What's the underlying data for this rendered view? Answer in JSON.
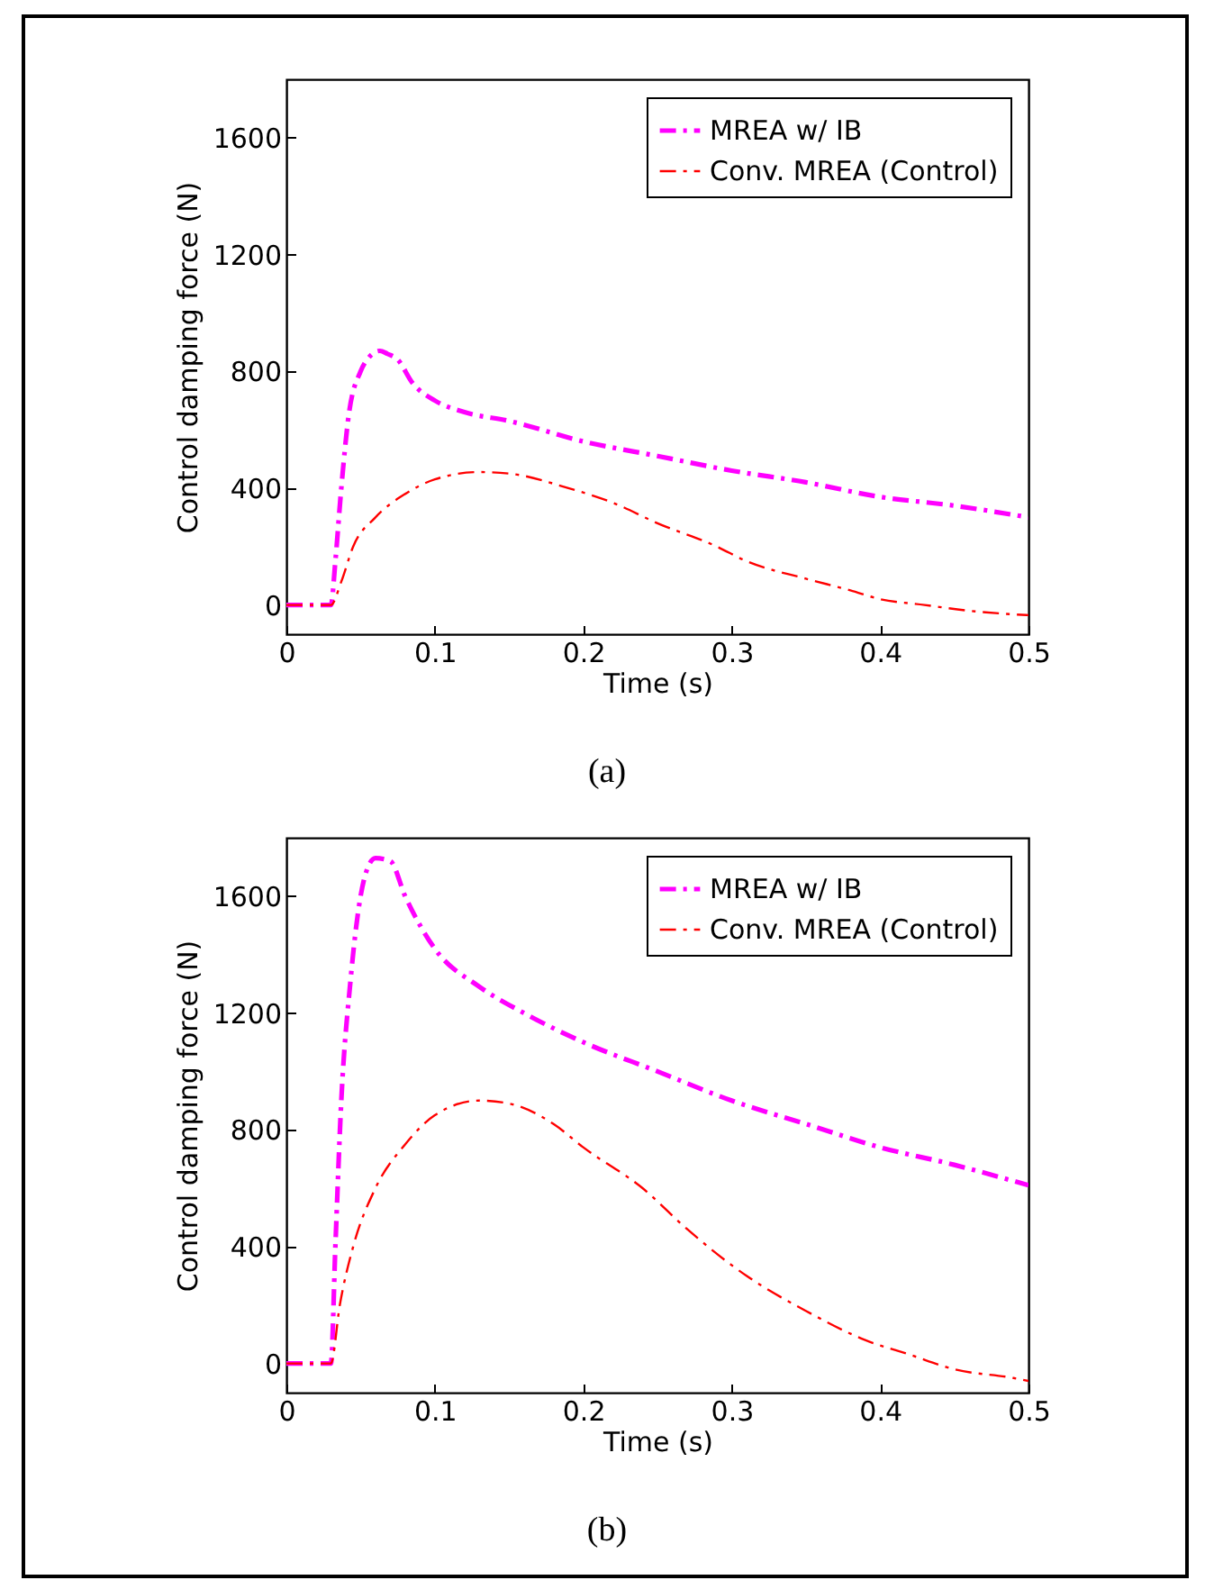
{
  "chart_data": [
    {
      "type": "line",
      "xlabel": "Time (s)",
      "ylabel": "Control damping force (N)",
      "annotations": [
        "(a)"
      ],
      "xlim": [
        0,
        0.5
      ],
      "xticks": [
        0,
        0.1,
        0.2,
        0.3,
        0.4,
        0.5
      ],
      "ylim": [
        -100,
        1800
      ],
      "yticks": [
        0,
        400,
        800,
        1200,
        1600
      ],
      "grid": false,
      "legend": "top right",
      "line_style": "dashed",
      "series": [
        {
          "name": "MREA w/ IB",
          "color": "#ff00ff",
          "x": [
            0,
            0.02,
            0.03,
            0.033,
            0.037,
            0.042,
            0.05,
            0.056,
            0.063,
            0.068,
            0.075,
            0.085,
            0.1,
            0.12,
            0.15,
            0.2,
            0.25,
            0.3,
            0.35,
            0.4,
            0.45,
            0.5
          ],
          "values": [
            0,
            0,
            0,
            150,
            400,
            650,
            800,
            850,
            870,
            860,
            840,
            760,
            700,
            660,
            630,
            560,
            510,
            460,
            420,
            370,
            340,
            300
          ]
        },
        {
          "name": "Conv. MREA (Control)",
          "color": "#ff0000",
          "x": [
            0,
            0.02,
            0.03,
            0.037,
            0.045,
            0.06,
            0.08,
            0.1,
            0.13,
            0.15,
            0.19,
            0.22,
            0.25,
            0.29,
            0.31,
            0.35,
            0.38,
            0.4,
            0.43,
            0.46,
            0.5
          ],
          "values": [
            0,
            0,
            0,
            80,
            200,
            300,
            380,
            430,
            455,
            450,
            400,
            350,
            280,
            200,
            150,
            90,
            50,
            20,
            0,
            -20,
            -35
          ]
        }
      ]
    },
    {
      "type": "line",
      "xlabel": "Time (s)",
      "ylabel": "Control damping force (N)",
      "annotations": [
        "(b)"
      ],
      "xlim": [
        0,
        0.5
      ],
      "xticks": [
        0,
        0.1,
        0.2,
        0.3,
        0.4,
        0.5
      ],
      "ylim": [
        -100,
        1800
      ],
      "yticks": [
        0,
        400,
        800,
        1200,
        1600
      ],
      "grid": false,
      "legend": "top right",
      "line_style": "dashed",
      "series": [
        {
          "name": "MREA w/ IB",
          "color": "#ff00ff",
          "x": [
            0,
            0.02,
            0.03,
            0.033,
            0.037,
            0.043,
            0.05,
            0.055,
            0.06,
            0.07,
            0.08,
            0.1,
            0.13,
            0.16,
            0.2,
            0.25,
            0.3,
            0.35,
            0.4,
            0.45,
            0.5
          ],
          "values": [
            0,
            0,
            0,
            400,
            900,
            1300,
            1600,
            1700,
            1730,
            1720,
            1600,
            1420,
            1290,
            1200,
            1100,
            1000,
            900,
            820,
            740,
            680,
            610
          ]
        },
        {
          "name": "Conv. MREA (Control)",
          "color": "#ff0000",
          "x": [
            0,
            0.02,
            0.03,
            0.036,
            0.045,
            0.06,
            0.08,
            0.1,
            0.13,
            0.15,
            0.18,
            0.2,
            0.24,
            0.27,
            0.31,
            0.35,
            0.39,
            0.42,
            0.45,
            0.49,
            0.5
          ],
          "values": [
            0,
            0,
            0,
            200,
            400,
            600,
            750,
            850,
            900,
            890,
            820,
            740,
            600,
            460,
            300,
            180,
            80,
            30,
            -20,
            -50,
            -60
          ]
        }
      ]
    }
  ]
}
